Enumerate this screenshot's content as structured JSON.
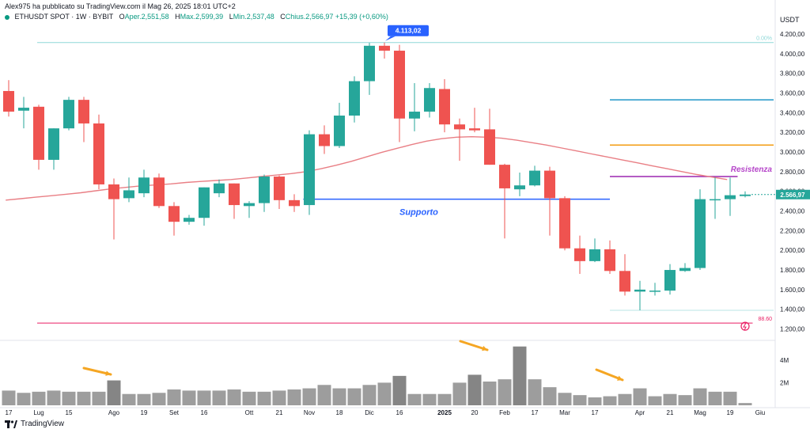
{
  "header": {
    "publish_line": "Alex975 ha pubblicato su TradingView.com il Mag 26, 2025 18:01 UTC+2",
    "symbol": "ETHUSDT SPOT · 1W · BYBIT",
    "o_label": "O",
    "o_text": "Aper.2,551,58",
    "h_label": "H",
    "h_text": "Max.2,599,39",
    "l_label": "L",
    "l_text": "Min.2,537,48",
    "c_label": "C",
    "c_text": "Chius.2,566,97",
    "change_text": "+15,39 (+0,60%)",
    "currency": "USDT"
  },
  "footer": {
    "brand": "TradingView"
  },
  "colors": {
    "bull": "#26a69a",
    "bear": "#ef5350",
    "ma": "#e97f85",
    "support": "#2962ff",
    "resistance": "#9c27b0",
    "fib_top": "#8fd8d8",
    "fib_bottom": "#e91e63",
    "level_blue": "#2196c8",
    "level_orange": "#f39c12",
    "volume": "#8c8c8c",
    "volume_dark": "#707070"
  },
  "chart_data": {
    "type": "candlestick",
    "title": "ETHUSDT SPOT · 1W · BYBIT",
    "ylabel": "USDT",
    "ylim": [
      1100,
      4320
    ],
    "y_ticks": [
      1200,
      1400,
      1600,
      1800,
      2000,
      2200,
      2400,
      2600,
      2800,
      3000,
      3200,
      3400,
      3600,
      3800,
      4000,
      4200
    ],
    "y_tick_labels": [
      "1.200,00",
      "1.400,00",
      "1.600,00",
      "1.800,00",
      "2.000,00",
      "2.200,00",
      "2.400,00",
      "2.600,00",
      "2.800,00",
      "3.000,00",
      "3.200,00",
      "3.400,00",
      "3.600,00",
      "3.800,00",
      "4.000,00",
      "4.200,00"
    ],
    "x_labels": [
      {
        "i": 0,
        "text": "17"
      },
      {
        "i": 2,
        "text": "Lug"
      },
      {
        "i": 4,
        "text": "15"
      },
      {
        "i": 7,
        "text": "Ago"
      },
      {
        "i": 9,
        "text": "19"
      },
      {
        "i": 11,
        "text": "Set"
      },
      {
        "i": 13,
        "text": "16"
      },
      {
        "i": 16,
        "text": "Ott"
      },
      {
        "i": 18,
        "text": "21"
      },
      {
        "i": 20,
        "text": "Nov"
      },
      {
        "i": 22,
        "text": "18"
      },
      {
        "i": 24,
        "text": "Dic"
      },
      {
        "i": 26,
        "text": "16"
      },
      {
        "i": 29,
        "text": "2025"
      },
      {
        "i": 31,
        "text": "20"
      },
      {
        "i": 33,
        "text": "Feb"
      },
      {
        "i": 35,
        "text": "17"
      },
      {
        "i": 37,
        "text": "Mar"
      },
      {
        "i": 39,
        "text": "17"
      },
      {
        "i": 42,
        "text": "Apr"
      },
      {
        "i": 44,
        "text": "21"
      },
      {
        "i": 46,
        "text": "Mag"
      },
      {
        "i": 48,
        "text": "19"
      },
      {
        "i": 50,
        "text": "Giu"
      }
    ],
    "candles": [
      {
        "o": 3620,
        "h": 3730,
        "l": 3360,
        "c": 3410
      },
      {
        "o": 3420,
        "h": 3560,
        "l": 3240,
        "c": 3450
      },
      {
        "o": 3460,
        "h": 3480,
        "l": 2820,
        "c": 2920
      },
      {
        "o": 2920,
        "h": 3240,
        "l": 2820,
        "c": 3240
      },
      {
        "o": 3240,
        "h": 3560,
        "l": 3220,
        "c": 3530
      },
      {
        "o": 3530,
        "h": 3560,
        "l": 3100,
        "c": 3290
      },
      {
        "o": 3290,
        "h": 3380,
        "l": 2620,
        "c": 2670
      },
      {
        "o": 2670,
        "h": 2730,
        "l": 2110,
        "c": 2520
      },
      {
        "o": 2530,
        "h": 2740,
        "l": 2490,
        "c": 2610
      },
      {
        "o": 2580,
        "h": 2820,
        "l": 2540,
        "c": 2740
      },
      {
        "o": 2740,
        "h": 2780,
        "l": 2430,
        "c": 2450
      },
      {
        "o": 2450,
        "h": 2490,
        "l": 2150,
        "c": 2290
      },
      {
        "o": 2290,
        "h": 2360,
        "l": 2260,
        "c": 2330
      },
      {
        "o": 2330,
        "h": 2640,
        "l": 2250,
        "c": 2640
      },
      {
        "o": 2580,
        "h": 2720,
        "l": 2540,
        "c": 2680
      },
      {
        "o": 2680,
        "h": 2680,
        "l": 2320,
        "c": 2460
      },
      {
        "o": 2450,
        "h": 2500,
        "l": 2330,
        "c": 2480
      },
      {
        "o": 2480,
        "h": 2770,
        "l": 2390,
        "c": 2750
      },
      {
        "o": 2750,
        "h": 2760,
        "l": 2420,
        "c": 2510
      },
      {
        "o": 2510,
        "h": 2570,
        "l": 2390,
        "c": 2450
      },
      {
        "o": 2460,
        "h": 3220,
        "l": 2360,
        "c": 3180
      },
      {
        "o": 3180,
        "h": 3270,
        "l": 2980,
        "c": 3060
      },
      {
        "o": 3060,
        "h": 3500,
        "l": 3040,
        "c": 3370
      },
      {
        "o": 3370,
        "h": 3770,
        "l": 3300,
        "c": 3720
      },
      {
        "o": 3720,
        "h": 4110,
        "l": 3580,
        "c": 4080
      },
      {
        "o": 4080,
        "h": 4113,
        "l": 3950,
        "c": 4030
      },
      {
        "o": 4030,
        "h": 4090,
        "l": 3100,
        "c": 3340
      },
      {
        "o": 3340,
        "h": 3700,
        "l": 3210,
        "c": 3410
      },
      {
        "o": 3410,
        "h": 3700,
        "l": 3350,
        "c": 3650
      },
      {
        "o": 3640,
        "h": 3740,
        "l": 3200,
        "c": 3280
      },
      {
        "o": 3280,
        "h": 3340,
        "l": 2910,
        "c": 3230
      },
      {
        "o": 3240,
        "h": 3450,
        "l": 3200,
        "c": 3220
      },
      {
        "o": 3230,
        "h": 3440,
        "l": 2870,
        "c": 2870
      },
      {
        "o": 2870,
        "h": 2880,
        "l": 2120,
        "c": 2630
      },
      {
        "o": 2620,
        "h": 2790,
        "l": 2550,
        "c": 2660
      },
      {
        "o": 2660,
        "h": 2860,
        "l": 2650,
        "c": 2810
      },
      {
        "o": 2810,
        "h": 2850,
        "l": 2150,
        "c": 2530
      },
      {
        "o": 2530,
        "h": 2550,
        "l": 2000,
        "c": 2020
      },
      {
        "o": 2020,
        "h": 2150,
        "l": 1760,
        "c": 1890
      },
      {
        "o": 1890,
        "h": 2120,
        "l": 1880,
        "c": 2010
      },
      {
        "o": 2010,
        "h": 2100,
        "l": 1760,
        "c": 1790
      },
      {
        "o": 1790,
        "h": 1960,
        "l": 1540,
        "c": 1580
      },
      {
        "o": 1580,
        "h": 1690,
        "l": 1390,
        "c": 1600
      },
      {
        "o": 1590,
        "h": 1670,
        "l": 1540,
        "c": 1590
      },
      {
        "o": 1590,
        "h": 1860,
        "l": 1550,
        "c": 1800
      },
      {
        "o": 1790,
        "h": 1870,
        "l": 1780,
        "c": 1820
      },
      {
        "o": 1820,
        "h": 2620,
        "l": 1800,
        "c": 2520
      },
      {
        "o": 2520,
        "h": 2740,
        "l": 2320,
        "c": 2520
      },
      {
        "o": 2520,
        "h": 2740,
        "l": 2350,
        "c": 2560
      },
      {
        "o": 2551.58,
        "h": 2599.39,
        "l": 2537.48,
        "c": 2566.97
      }
    ],
    "moving_average": [
      2510,
      2525,
      2540,
      2555,
      2570,
      2585,
      2605,
      2625,
      2640,
      2655,
      2665,
      2675,
      2690,
      2700,
      2710,
      2720,
      2735,
      2750,
      2765,
      2780,
      2800,
      2830,
      2865,
      2905,
      2950,
      2995,
      3035,
      3075,
      3110,
      3135,
      3150,
      3155,
      3150,
      3140,
      3120,
      3095,
      3070,
      3040,
      3010,
      2980,
      2950,
      2920,
      2890,
      2860,
      2830,
      2800,
      2770,
      2745,
      2720
    ],
    "volume": {
      "unit_ticks": [
        {
          "v": 2,
          "label": "2M"
        },
        {
          "v": 4,
          "label": "4M"
        }
      ],
      "max": 5.6,
      "values": [
        1.3,
        1.1,
        1.2,
        1.3,
        1.2,
        1.2,
        1.2,
        2.2,
        1.0,
        1.0,
        1.1,
        1.4,
        1.3,
        1.3,
        1.3,
        1.4,
        1.2,
        1.2,
        1.3,
        1.4,
        1.5,
        1.8,
        1.5,
        1.5,
        1.8,
        2.0,
        2.6,
        1.0,
        1.0,
        1.0,
        2.0,
        2.7,
        2.1,
        2.3,
        5.2,
        2.3,
        1.6,
        1.1,
        0.9,
        0.7,
        0.8,
        1.0,
        1.5,
        0.8,
        1.0,
        0.9,
        1.5,
        1.2,
        1.2,
        0.2
      ]
    },
    "levels": [
      {
        "name": "fib-top",
        "value": 4113,
        "label": "0.00%",
        "start": 2,
        "end": 51,
        "color": "#8fd8d8",
        "width": 1
      },
      {
        "name": "level-blue",
        "value": 3530,
        "label": "",
        "start": 40,
        "end": 51,
        "color": "#2196c8",
        "width": 1.5
      },
      {
        "name": "level-orange",
        "value": 3070,
        "label": "",
        "start": 40,
        "end": 51,
        "color": "#f39c12",
        "width": 1.5
      },
      {
        "name": "resistance",
        "value": 2750,
        "label": "Resistenza",
        "start": 40,
        "end": 48.5,
        "color": "#9c27b0",
        "width": 1.5
      },
      {
        "name": "support",
        "value": 2520,
        "label": "Supporto",
        "start": 19.6,
        "end": 40,
        "color": "#2962ff",
        "width": 1.5
      },
      {
        "name": "fib-bottom-line1",
        "value": 1390,
        "label": "",
        "start": 40,
        "end": 51,
        "color": "#b9e6e6",
        "width": 1
      },
      {
        "name": "fib-bottom",
        "value": 1260,
        "label": "88.60",
        "start": 2,
        "end": 49.5,
        "color": "#e91e63",
        "width": 1
      }
    ],
    "price_badge": {
      "value": 2566.97,
      "label": "2.566,97"
    },
    "high_marker": {
      "index": 25,
      "label": "4.113,02"
    },
    "annotations": {
      "support": "Supporto",
      "resistance": "Resistenza"
    }
  }
}
